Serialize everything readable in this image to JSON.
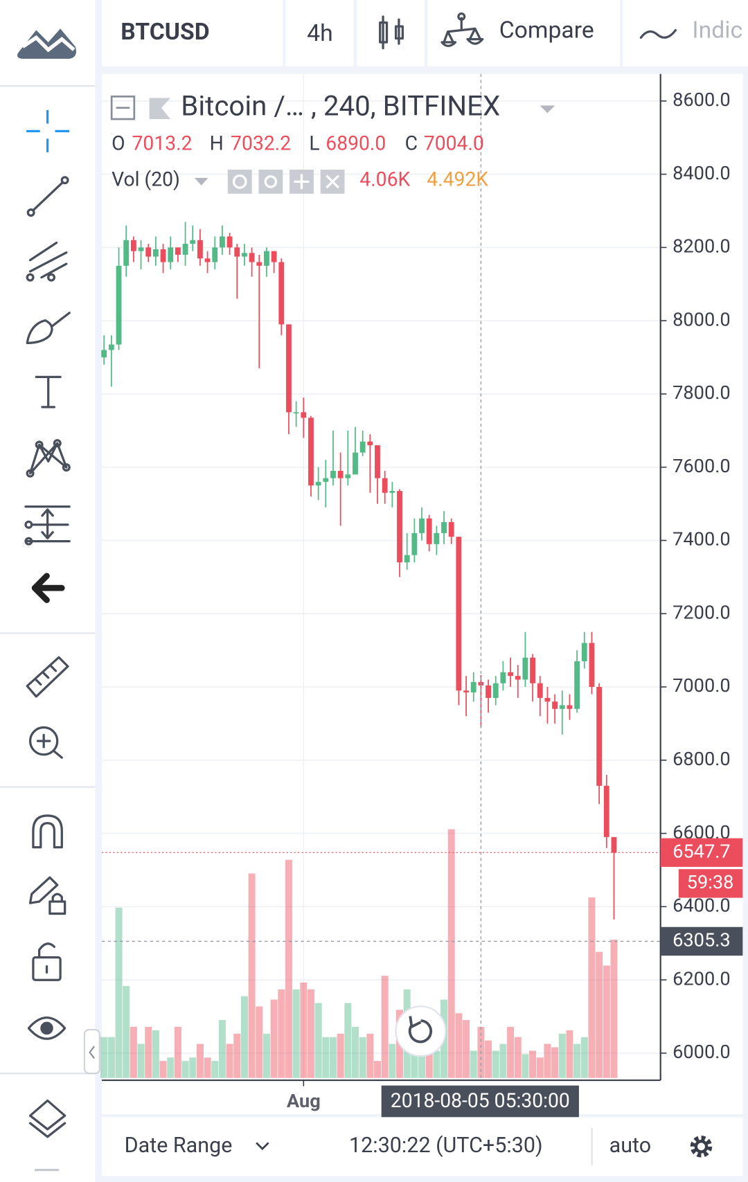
{
  "toolbar": {
    "symbol": "BTCUSD",
    "interval": "4h",
    "compare": "Compare",
    "indicators": "Indicators"
  },
  "legend": {
    "title": "Bitcoin /… , 240, BITFINEX",
    "ohlc": [
      {
        "label": "O",
        "value": "7013.2"
      },
      {
        "label": "H",
        "value": "7032.2"
      },
      {
        "label": "L",
        "value": "6890.0"
      },
      {
        "label": "C",
        "value": "7004.0"
      }
    ],
    "volume_title": "Vol (20)",
    "volume_values": [
      "4.06K",
      "4.492K"
    ]
  },
  "chart_data": {
    "type": "candlestick",
    "open": [
      7900,
      7920,
      7935,
      8150,
      8220,
      8190,
      8200,
      8175,
      8195,
      8160,
      8200,
      8180,
      8210,
      8220,
      8170,
      8160,
      8200,
      8230,
      8200,
      8175,
      8185,
      8160,
      8150,
      8190,
      8160,
      7990,
      7750,
      7750,
      7735,
      7550,
      7560,
      7570,
      7590,
      7570,
      7580,
      7640,
      7670,
      7660,
      7570,
      7530,
      7535,
      7340,
      7360,
      7420,
      7460,
      7390,
      7420,
      7450,
      7410,
      6990,
      6985,
      7013.2,
      7004,
      6970,
      7010,
      7040,
      7030,
      7020,
      7080,
      7010,
      6970,
      6960,
      6940,
      6950,
      6940,
      7070,
      7120,
      7000,
      6730,
      6590
    ],
    "high": [
      7960,
      7960,
      8200,
      8260,
      8230,
      8220,
      8210,
      8230,
      8210,
      8230,
      8200,
      8270,
      8260,
      8250,
      8190,
      8230,
      8260,
      8240,
      8210,
      8210,
      8200,
      8180,
      8200,
      8190,
      8170,
      7990,
      7780,
      7790,
      7740,
      7600,
      7620,
      7700,
      7640,
      7700,
      7710,
      7700,
      7690,
      7660,
      7590,
      7560,
      7540,
      7420,
      7460,
      7490,
      7470,
      7440,
      7480,
      7460,
      7410,
      7030,
      7040,
      7032.2,
      7020,
      7030,
      7070,
      7080,
      7060,
      7150,
      7090,
      7030,
      7000,
      6980,
      6990,
      6980,
      7100,
      7150,
      7150,
      7010,
      6760,
      6590
    ],
    "low": [
      7880,
      7820,
      7920,
      8120,
      8160,
      8140,
      8160,
      8150,
      8130,
      8140,
      8160,
      8150,
      8190,
      8150,
      8130,
      8140,
      8180,
      8180,
      8060,
      8150,
      8120,
      7870,
      8120,
      8130,
      7960,
      7690,
      7710,
      7680,
      7520,
      7510,
      7490,
      7550,
      7440,
      7550,
      7600,
      7630,
      7530,
      7500,
      7500,
      7490,
      7300,
      7320,
      7340,
      7400,
      7370,
      7360,
      7390,
      7390,
      6950,
      6920,
      6960,
      6890,
      6930,
      6950,
      6990,
      7000,
      6970,
      7000,
      6960,
      6920,
      6900,
      6900,
      6870,
      6910,
      6930,
      7050,
      6980,
      6680,
      6560,
      6365
    ],
    "close": [
      7920,
      7935,
      8150,
      8220,
      8190,
      8200,
      8175,
      8195,
      8160,
      8200,
      8180,
      8210,
      8220,
      8170,
      8160,
      8200,
      8230,
      8200,
      8175,
      8185,
      8160,
      8150,
      8190,
      8160,
      7990,
      7750,
      7750,
      7735,
      7550,
      7560,
      7570,
      7590,
      7570,
      7580,
      7640,
      7670,
      7660,
      7570,
      7530,
      7535,
      7340,
      7360,
      7420,
      7460,
      7390,
      7420,
      7450,
      7410,
      6990,
      6985,
      7013.2,
      7004,
      6970,
      7010,
      7040,
      7030,
      7020,
      7080,
      7010,
      6970,
      6960,
      6940,
      6950,
      6940,
      7070,
      7120,
      7000,
      6730,
      6590,
      6547.7
    ],
    "volume": [
      1.2,
      1.2,
      5.0,
      2.7,
      1.5,
      1.0,
      1.5,
      1.4,
      0.5,
      0.6,
      1.5,
      0.5,
      0.6,
      1.0,
      0.6,
      0.5,
      1.7,
      1.0,
      1.3,
      2.4,
      6.0,
      2.1,
      1.3,
      2.3,
      2.6,
      6.4,
      2.6,
      2.8,
      2.6,
      2.2,
      1.2,
      1.2,
      1.3,
      2.2,
      1.5,
      1.2,
      1.3,
      0.5,
      3.0,
      1.0,
      2.0,
      2.6,
      1.5,
      1.4,
      1.2,
      0.8,
      2.3,
      7.3,
      1.9,
      1.7,
      0.8,
      1.5,
      1.1,
      0.8,
      1.0,
      1.5,
      1.2,
      0.7,
      0.8,
      0.6,
      1.0,
      0.9,
      1.3,
      1.4,
      1.0,
      1.2,
      5.3,
      3.7,
      3.3,
      4.06
    ],
    "colors": {
      "up": "#53b987",
      "down": "#eb4d5c"
    },
    "xlim": [
      -0.3,
      75.3
    ],
    "ylim": [
      5926,
      8674
    ],
    "yticks": [
      {
        "value": 6000,
        "label": "6000.0"
      },
      {
        "value": 6200,
        "label": "6200.0"
      },
      {
        "value": 6400,
        "label": "6400.0"
      },
      {
        "value": 6600,
        "label": "6600.0"
      },
      {
        "value": 6800,
        "label": "6800.0"
      },
      {
        "value": 7000,
        "label": "7000.0"
      },
      {
        "value": 7200,
        "label": "7200.0"
      },
      {
        "value": 7400,
        "label": "7400.0"
      },
      {
        "value": 7600,
        "label": "7600.0"
      },
      {
        "value": 7800,
        "label": "7800.0"
      },
      {
        "value": 8000,
        "label": "8000.0"
      },
      {
        "value": 8200,
        "label": "8200.0"
      },
      {
        "value": 8400,
        "label": "8400.0"
      },
      {
        "value": 8600,
        "label": "8600.0"
      }
    ],
    "xticks": [
      {
        "value": 27,
        "label": "Aug"
      }
    ],
    "grid": true,
    "last_price": 6547.7,
    "countdown": "59:38",
    "crosshair": {
      "index": 51,
      "price": 6305.3,
      "time": "2018-08-05 05:30:00"
    }
  },
  "footer": {
    "date_range": "Date Range",
    "clock": "12:30:22 (UTC+5:30)",
    "scale_mode": "auto"
  }
}
